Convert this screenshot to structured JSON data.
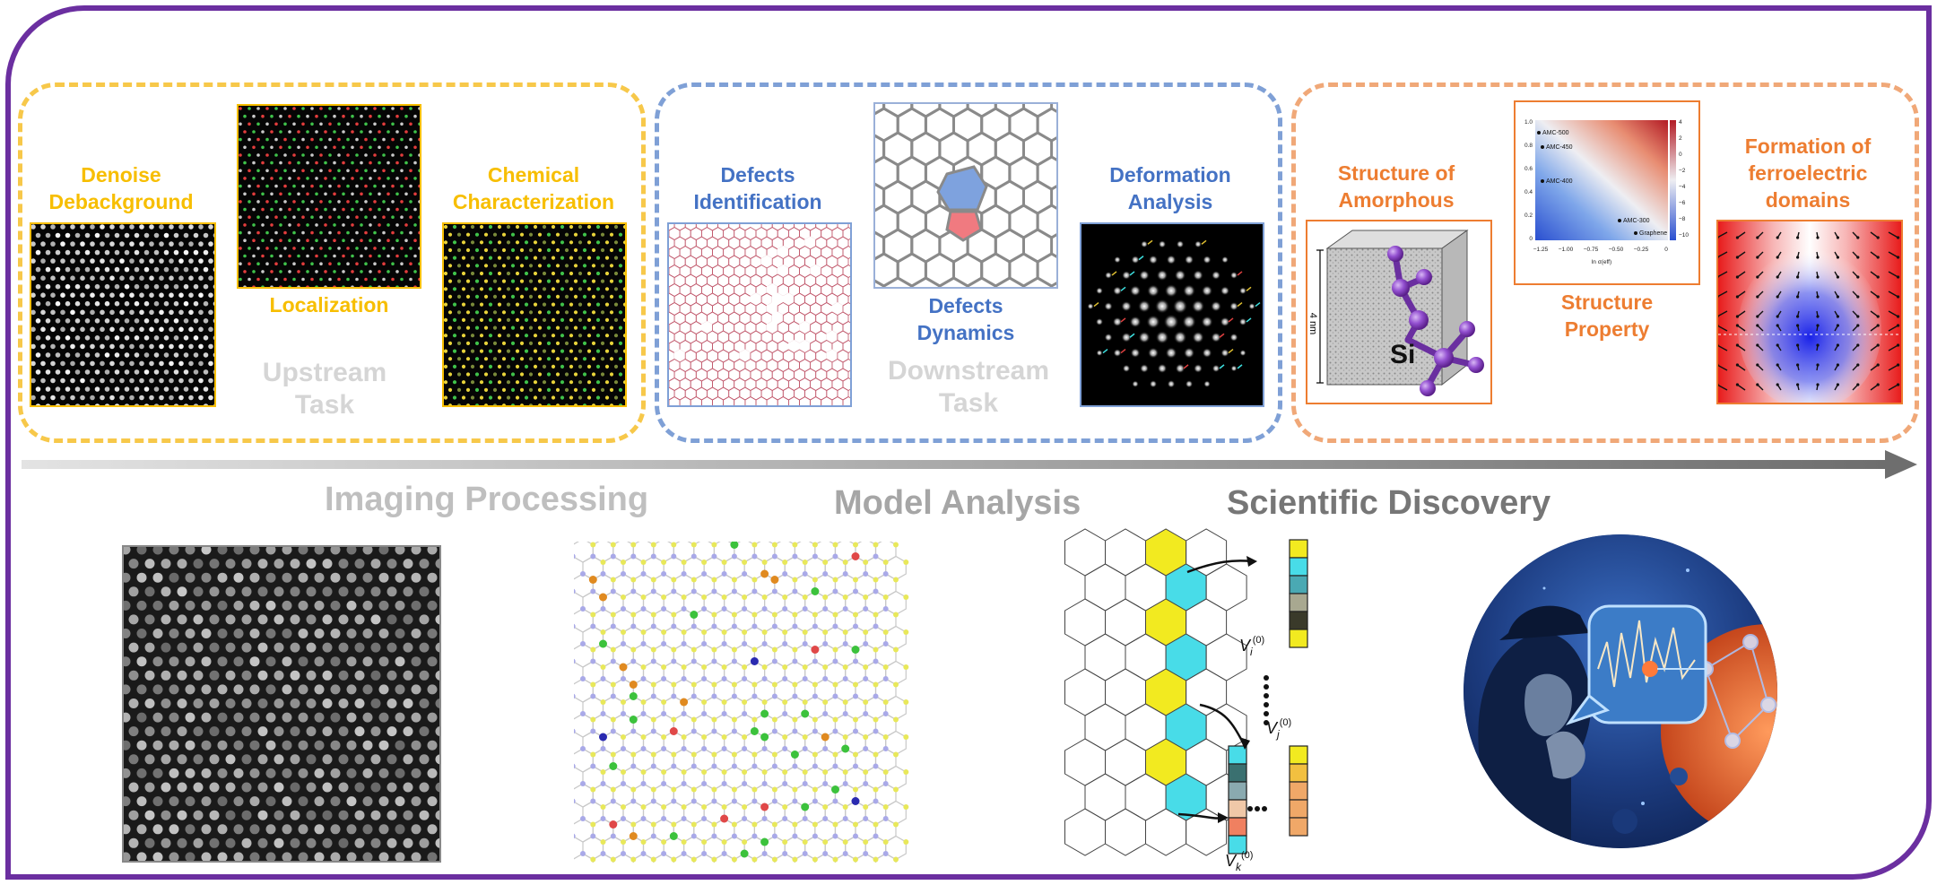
{
  "groups": {
    "upstream": {
      "denoise_label": "Denoise\nDebackground",
      "localization_label": "Localization",
      "chemical_label": "Chemical\nCharacterization",
      "task_label": "Upstream\nTask"
    },
    "downstream": {
      "defects_identification_label": "Defects\nIdentification",
      "defects_dynamics_label": "Defects\nDynamics",
      "deformation_label": "Deformation\nAnalysis",
      "task_label": "Downstream\nTask"
    },
    "discovery": {
      "amorphous_label": "Structure of\nAmorphous",
      "property_label": "Structure\nProperty",
      "ferro_label": "Formation of\nferroelectric\ndomains",
      "amorphous_inset": {
        "scale": "4 nm",
        "element": "Si"
      },
      "property_plot": {
        "points": [
          "AMC-500",
          "AMC-450",
          "AMC-400",
          "AMC-300",
          "Graphene"
        ],
        "y_ticks": [
          "1.0",
          "0.8",
          "0.6",
          "0.4",
          "0.2",
          "0"
        ],
        "x_ticks": [
          "−1.25",
          "−1.00",
          "−0.75",
          "−0.50",
          "−0.25",
          "0"
        ],
        "colorbar_ticks": [
          "4",
          "2",
          "0",
          "−2",
          "−4",
          "−6",
          "−8",
          "−10"
        ],
        "xlabel": "ln σ(eff)"
      }
    }
  },
  "stages": {
    "imaging": "Imaging Processing",
    "model": "Model Analysis",
    "discovery": "Scientific Discovery"
  },
  "graph_labels": {
    "vi": "V",
    "vi_sub": "i",
    "vj": "V",
    "vj_sub": "j",
    "vk": "V",
    "vk_sub": "k",
    "superscript": "(0)"
  },
  "colors": {
    "frame": "#6b2fa0",
    "upstream": "#f7be00",
    "downstream": "#4472c4",
    "discovery": "#ed7d31",
    "ghost_text": "#d5d5d5"
  }
}
